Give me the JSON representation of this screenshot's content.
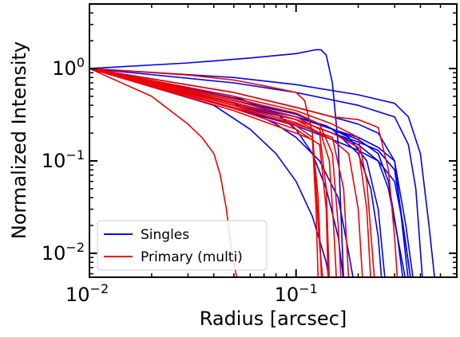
{
  "chart_data": {
    "type": "line",
    "title": "",
    "xlabel": "Radius [arcsec]",
    "ylabel": "Normalized Intensity",
    "x_scale": "log",
    "y_scale": "log",
    "xlim": [
      0.01,
      0.6
    ],
    "ylim": [
      0.0055,
      5
    ],
    "grid": false,
    "legend_position": "lower-left",
    "x_ticks": [
      {
        "value": 0.01,
        "base": "10",
        "exp": "−2"
      },
      {
        "value": 0.1,
        "base": "10",
        "exp": "−1"
      }
    ],
    "y_ticks": [
      {
        "value": 1,
        "base": "10",
        "exp": "0"
      },
      {
        "value": 0.1,
        "base": "10",
        "exp": "−1"
      },
      {
        "value": 0.01,
        "base": "10",
        "exp": "−2"
      }
    ],
    "legend": [
      {
        "label": "Singles",
        "color": "#0000ee"
      },
      {
        "label": "Primary (multi)",
        "color": "#ee0000"
      }
    ],
    "series": [
      {
        "group": "Singles",
        "color": "#0000ee",
        "x": [
          0.01,
          0.03,
          0.06,
          0.1,
          0.125,
          0.132,
          0.14,
          0.15,
          0.16,
          0.17
        ],
        "y": [
          1,
          1.15,
          1.3,
          1.45,
          1.6,
          1.6,
          1.4,
          0.7,
          0.15,
          0.005
        ]
      },
      {
        "group": "Singles",
        "color": "#0000ee",
        "x": [
          0.01,
          0.05,
          0.1,
          0.2,
          0.3,
          0.35,
          0.4,
          0.44,
          0.47
        ],
        "y": [
          1,
          0.8,
          0.67,
          0.52,
          0.42,
          0.3,
          0.12,
          0.02,
          0.005
        ]
      },
      {
        "group": "Singles",
        "color": "#0000ee",
        "x": [
          0.01,
          0.05,
          0.1,
          0.2,
          0.3,
          0.35,
          0.38,
          0.41
        ],
        "y": [
          1,
          0.7,
          0.55,
          0.4,
          0.3,
          0.15,
          0.05,
          0.005
        ]
      },
      {
        "group": "Singles",
        "color": "#0000ee",
        "x": [
          0.01,
          0.05,
          0.1,
          0.15,
          0.2,
          0.25,
          0.3,
          0.34,
          0.37
        ],
        "y": [
          1,
          0.55,
          0.38,
          0.3,
          0.25,
          0.2,
          0.1,
          0.02,
          0.005
        ]
      },
      {
        "group": "Singles",
        "color": "#0000ee",
        "x": [
          0.01,
          0.05,
          0.1,
          0.15,
          0.2,
          0.25,
          0.28,
          0.31,
          0.33
        ],
        "y": [
          1,
          0.45,
          0.32,
          0.22,
          0.17,
          0.12,
          0.06,
          0.015,
          0.005
        ]
      },
      {
        "group": "Singles",
        "color": "#0000ee",
        "x": [
          0.01,
          0.05,
          0.1,
          0.15,
          0.2,
          0.25,
          0.3,
          0.33,
          0.36
        ],
        "y": [
          1,
          0.4,
          0.28,
          0.2,
          0.16,
          0.13,
          0.08,
          0.02,
          0.005
        ]
      },
      {
        "group": "Singles",
        "color": "#0000ee",
        "x": [
          0.01,
          0.05,
          0.1,
          0.14,
          0.18,
          0.22,
          0.25,
          0.27
        ],
        "y": [
          1,
          0.42,
          0.3,
          0.24,
          0.18,
          0.1,
          0.03,
          0.005
        ]
      },
      {
        "group": "Singles",
        "color": "#0000ee",
        "x": [
          0.01,
          0.05,
          0.1,
          0.15,
          0.2,
          0.25,
          0.3,
          0.32,
          0.35
        ],
        "y": [
          1,
          0.42,
          0.3,
          0.22,
          0.18,
          0.14,
          0.1,
          0.03,
          0.005
        ]
      },
      {
        "group": "Singles",
        "color": "#0000ee",
        "x": [
          0.01,
          0.05,
          0.1,
          0.15,
          0.2,
          0.25,
          0.28,
          0.31,
          0.34
        ],
        "y": [
          1,
          0.4,
          0.28,
          0.2,
          0.15,
          0.1,
          0.05,
          0.015,
          0.005
        ]
      },
      {
        "group": "Singles",
        "color": "#0000ee",
        "x": [
          0.01,
          0.05,
          0.08,
          0.1,
          0.13,
          0.16,
          0.18,
          0.19
        ],
        "y": [
          1,
          0.42,
          0.25,
          0.18,
          0.1,
          0.04,
          0.01,
          0.005
        ]
      },
      {
        "group": "Singles",
        "color": "#0000ee",
        "x": [
          0.01,
          0.04,
          0.06,
          0.08,
          0.1,
          0.12,
          0.14,
          0.145
        ],
        "y": [
          1,
          0.4,
          0.22,
          0.12,
          0.06,
          0.025,
          0.008,
          0.005
        ]
      },
      {
        "group": "Singles",
        "color": "#0000ee",
        "x": [
          0.01,
          0.05,
          0.08,
          0.1,
          0.12,
          0.14,
          0.16,
          0.17
        ],
        "y": [
          1,
          0.5,
          0.33,
          0.22,
          0.12,
          0.05,
          0.015,
          0.005
        ]
      },
      {
        "group": "Singles",
        "color": "#0000ee",
        "x": [
          0.01,
          0.05,
          0.1,
          0.15,
          0.2,
          0.23,
          0.25,
          0.26
        ],
        "y": [
          1,
          0.48,
          0.32,
          0.22,
          0.12,
          0.05,
          0.015,
          0.005
        ]
      },
      {
        "group": "Singles",
        "color": "#0000ee",
        "x": [
          0.01,
          0.05,
          0.1,
          0.15,
          0.2,
          0.25,
          0.3,
          0.33,
          0.36
        ],
        "y": [
          1,
          0.37,
          0.24,
          0.17,
          0.13,
          0.1,
          0.06,
          0.02,
          0.005
        ]
      },
      {
        "group": "Primary (multi)",
        "color": "#ee0000",
        "x": [
          0.01,
          0.02,
          0.03,
          0.035,
          0.04,
          0.043,
          0.046,
          0.049,
          0.052
        ],
        "y": [
          1,
          0.5,
          0.25,
          0.18,
          0.12,
          0.07,
          0.03,
          0.01,
          0.005
        ]
      },
      {
        "group": "Primary (multi)",
        "color": "#ee0000",
        "x": [
          0.01,
          0.03,
          0.05,
          0.07,
          0.09,
          0.1,
          0.11,
          0.12,
          0.125,
          0.13,
          0.135
        ],
        "y": [
          1,
          0.85,
          0.75,
          0.65,
          0.58,
          0.55,
          0.45,
          0.2,
          0.05,
          0.012,
          0.005
        ]
      },
      {
        "group": "Primary (multi)",
        "color": "#ee0000",
        "x": [
          0.01,
          0.05,
          0.1,
          0.15,
          0.2,
          0.25,
          0.28,
          0.3,
          0.31
        ],
        "y": [
          1,
          0.55,
          0.38,
          0.3,
          0.28,
          0.23,
          0.08,
          0.015,
          0.005
        ]
      },
      {
        "group": "Primary (multi)",
        "color": "#ee0000",
        "x": [
          0.01,
          0.05,
          0.1,
          0.15,
          0.2,
          0.22,
          0.24
        ],
        "y": [
          1,
          0.5,
          0.35,
          0.25,
          0.18,
          0.06,
          0.005
        ]
      },
      {
        "group": "Primary (multi)",
        "color": "#ee0000",
        "x": [
          0.01,
          0.05,
          0.1,
          0.13,
          0.15,
          0.16,
          0.165
        ],
        "y": [
          1,
          0.47,
          0.33,
          0.25,
          0.12,
          0.02,
          0.005
        ]
      },
      {
        "group": "Primary (multi)",
        "color": "#ee0000",
        "x": [
          0.01,
          0.05,
          0.1,
          0.13,
          0.145,
          0.152,
          0.157
        ],
        "y": [
          1,
          0.45,
          0.3,
          0.22,
          0.1,
          0.02,
          0.005
        ]
      },
      {
        "group": "Primary (multi)",
        "color": "#ee0000",
        "x": [
          0.01,
          0.05,
          0.1,
          0.13,
          0.14,
          0.145
        ],
        "y": [
          1,
          0.43,
          0.28,
          0.2,
          0.05,
          0.005
        ]
      },
      {
        "group": "Primary (multi)",
        "color": "#ee0000",
        "x": [
          0.01,
          0.05,
          0.1,
          0.12,
          0.128,
          0.133
        ],
        "y": [
          1,
          0.4,
          0.24,
          0.18,
          0.04,
          0.005
        ]
      },
      {
        "group": "Primary (multi)",
        "color": "#ee0000",
        "x": [
          0.01,
          0.05,
          0.1,
          0.12,
          0.125,
          0.128
        ],
        "y": [
          1,
          0.35,
          0.2,
          0.17,
          0.03,
          0.005
        ]
      },
      {
        "group": "Primary (multi)",
        "color": "#ee0000",
        "x": [
          0.01,
          0.05,
          0.1,
          0.15,
          0.18,
          0.2,
          0.21
        ],
        "y": [
          1,
          0.4,
          0.26,
          0.17,
          0.12,
          0.03,
          0.005
        ]
      },
      {
        "group": "Primary (multi)",
        "color": "#ee0000",
        "x": [
          0.01,
          0.05,
          0.1,
          0.13,
          0.14,
          0.143
        ],
        "y": [
          1,
          0.37,
          0.22,
          0.15,
          0.03,
          0.005
        ]
      },
      {
        "group": "Primary (multi)",
        "color": "#ee0000",
        "x": [
          0.01,
          0.05,
          0.1,
          0.15,
          0.2,
          0.22,
          0.23
        ],
        "y": [
          1,
          0.42,
          0.28,
          0.2,
          0.14,
          0.03,
          0.005
        ]
      },
      {
        "group": "Primary (multi)",
        "color": "#ee0000",
        "x": [
          0.01,
          0.05,
          0.1,
          0.15,
          0.17,
          0.18
        ],
        "y": [
          1,
          0.38,
          0.25,
          0.18,
          0.05,
          0.005
        ]
      }
    ]
  }
}
